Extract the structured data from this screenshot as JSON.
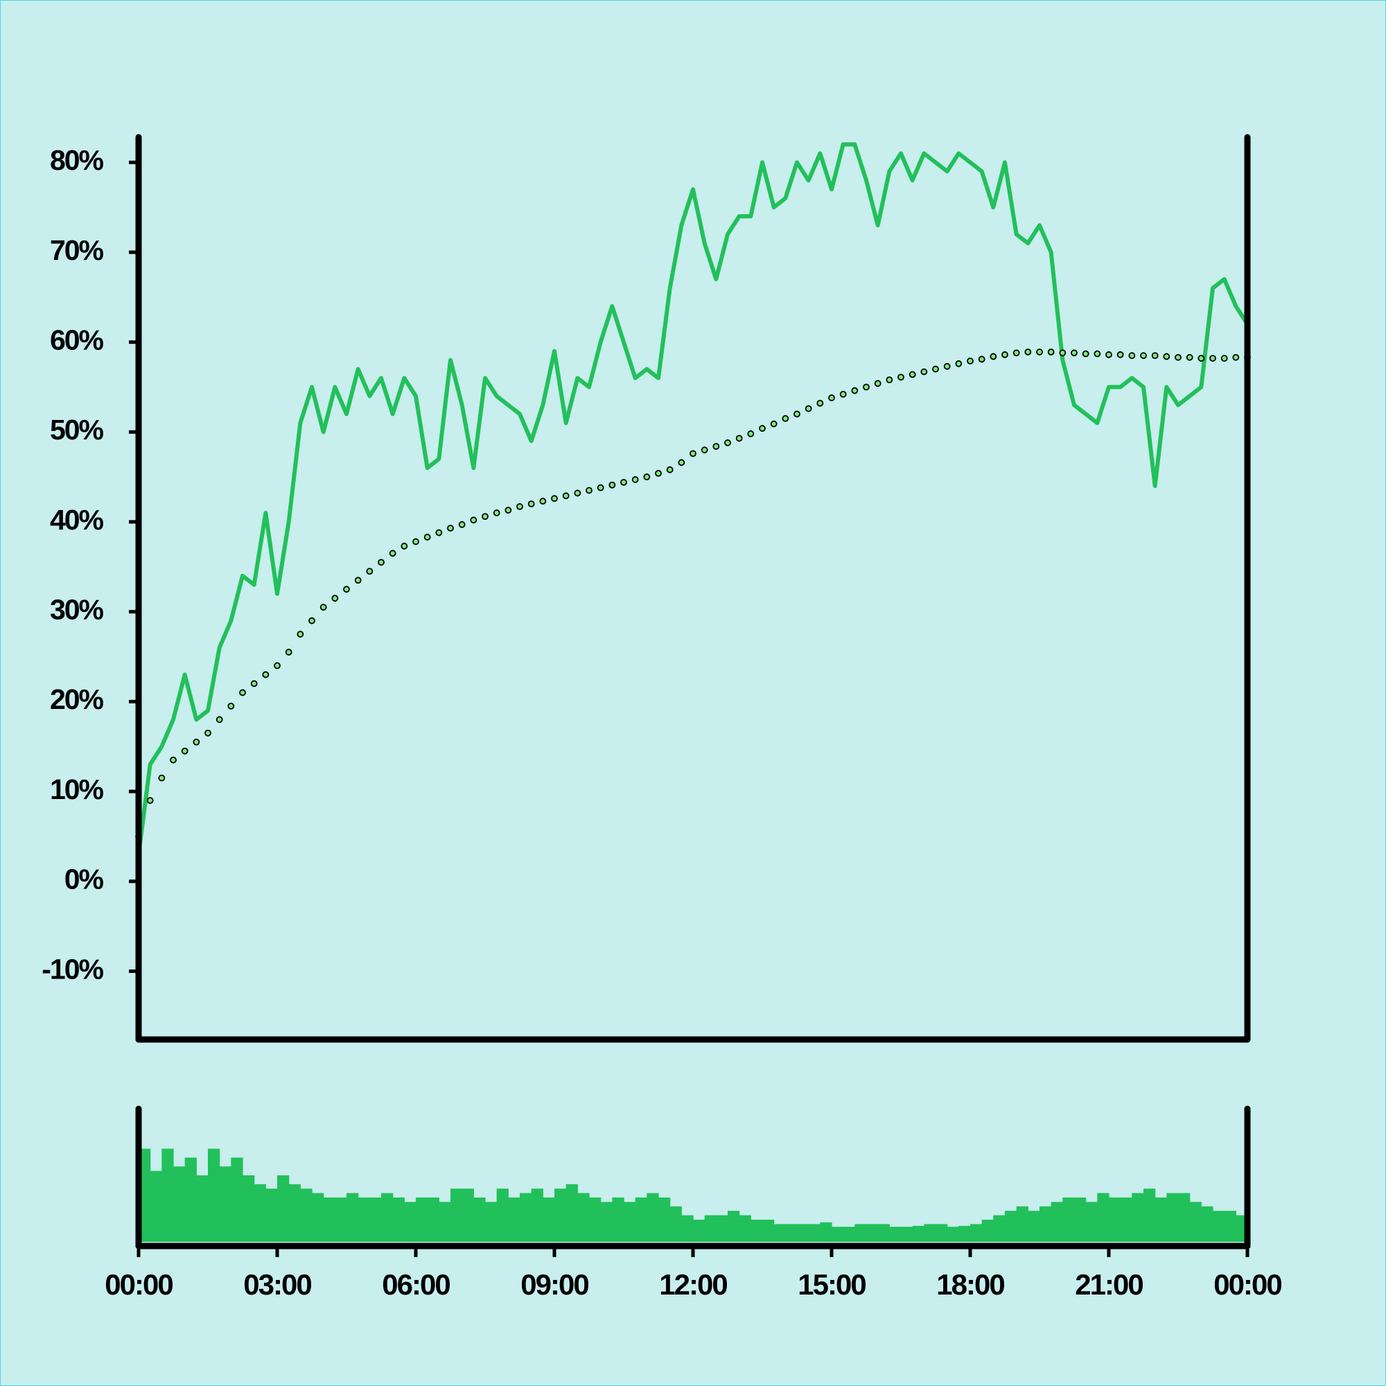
{
  "chart_data": [
    {
      "type": "line",
      "x": [
        0,
        0.25,
        0.5,
        0.75,
        1,
        1.25,
        1.5,
        1.75,
        2,
        2.25,
        2.5,
        2.75,
        3,
        3.25,
        3.5,
        3.75,
        4,
        4.25,
        4.5,
        4.75,
        5,
        5.25,
        5.5,
        5.75,
        6,
        6.25,
        6.5,
        6.75,
        7,
        7.25,
        7.5,
        7.75,
        8,
        8.25,
        8.5,
        8.75,
        9,
        9.25,
        9.5,
        9.75,
        10,
        10.25,
        10.5,
        10.75,
        11,
        11.25,
        11.5,
        11.75,
        12,
        12.25,
        12.5,
        12.75,
        13,
        13.25,
        13.5,
        13.75,
        14,
        14.25,
        14.5,
        14.75,
        15,
        15.25,
        15.5,
        15.75,
        16,
        16.25,
        16.5,
        16.75,
        17,
        17.25,
        17.5,
        17.75,
        18,
        18.25,
        18.5,
        18.75,
        19,
        19.25,
        19.5,
        19.75,
        20,
        20.25,
        20.5,
        20.75,
        21,
        21.25,
        21.5,
        21.75,
        22,
        22.25,
        22.5,
        22.75,
        23,
        23.25,
        23.5,
        23.75,
        24
      ],
      "xlim": [
        0,
        24
      ],
      "ylim": [
        -17.6,
        82.8
      ],
      "yticks": [
        {
          "value": -10,
          "label": "-10%"
        },
        {
          "value": 0,
          "label": "0%"
        },
        {
          "value": 10,
          "label": "10%"
        },
        {
          "value": 20,
          "label": "20%"
        },
        {
          "value": 30,
          "label": "30%"
        },
        {
          "value": 40,
          "label": "40%"
        },
        {
          "value": 50,
          "label": "50%"
        },
        {
          "value": 60,
          "label": "60%"
        },
        {
          "value": 70,
          "label": "70%"
        },
        {
          "value": 80,
          "label": "80%"
        }
      ],
      "series": [
        {
          "style": "line",
          "color": "#22c05a",
          "values": [
            3,
            13,
            15,
            18,
            23,
            18,
            19,
            26,
            29,
            34,
            33,
            41,
            32,
            40,
            51,
            55,
            50,
            55,
            52,
            57,
            54,
            56,
            52,
            56,
            54,
            46,
            47,
            58,
            53,
            46,
            56,
            54,
            53,
            52,
            49,
            53,
            59,
            51,
            56,
            55,
            60,
            64,
            60,
            56,
            57,
            56,
            66,
            73,
            77,
            71,
            67,
            72,
            74,
            74,
            80,
            75,
            76,
            80,
            78,
            81,
            77,
            82,
            82,
            78,
            73,
            79,
            81,
            78,
            81,
            80,
            79,
            81,
            80,
            79,
            75,
            80,
            72,
            71,
            73,
            70,
            58,
            53,
            52,
            51,
            55,
            55,
            56,
            55,
            44,
            55,
            53,
            54,
            55,
            66,
            67,
            64,
            62
          ]
        },
        {
          "style": "dots",
          "color": "#7de87d",
          "values": [
            5,
            9,
            11.5,
            13.5,
            14.5,
            15.5,
            16.5,
            18,
            19.5,
            21,
            22,
            23,
            24,
            25.5,
            27.5,
            29,
            30.5,
            31.5,
            32.5,
            33.5,
            34.5,
            35.5,
            36.5,
            37.3,
            37.8,
            38.3,
            38.8,
            39.3,
            39.7,
            40.2,
            40.6,
            41,
            41.3,
            41.7,
            42,
            42.3,
            42.6,
            42.9,
            43.2,
            43.5,
            43.8,
            44.1,
            44.4,
            44.7,
            45,
            45.4,
            45.8,
            46.6,
            47.6,
            48,
            48.4,
            48.8,
            49.3,
            49.8,
            50.4,
            50.9,
            51.5,
            52,
            52.6,
            53.2,
            53.8,
            54.2,
            54.6,
            55,
            55.4,
            55.8,
            56.1,
            56.4,
            56.7,
            57,
            57.3,
            57.6,
            57.9,
            58.1,
            58.4,
            58.6,
            58.8,
            58.9,
            58.9,
            58.9,
            58.8,
            58.8,
            58.7,
            58.7,
            58.6,
            58.6,
            58.5,
            58.5,
            58.5,
            58.4,
            58.3,
            58.3,
            58.2,
            58.2,
            58.2,
            58.3,
            58.3
          ]
        }
      ]
    },
    {
      "type": "bar",
      "color": "#22c05a",
      "bar_width": 0.25,
      "x": [
        0,
        0.25,
        0.5,
        0.75,
        1,
        1.25,
        1.5,
        1.75,
        2,
        2.25,
        2.5,
        2.75,
        3,
        3.25,
        3.5,
        3.75,
        4,
        4.25,
        4.5,
        4.75,
        5,
        5.25,
        5.5,
        5.75,
        6,
        6.25,
        6.5,
        6.75,
        7,
        7.25,
        7.5,
        7.75,
        8,
        8.25,
        8.5,
        8.75,
        9,
        9.25,
        9.5,
        9.75,
        10,
        10.25,
        10.5,
        10.75,
        11,
        11.25,
        11.5,
        11.75,
        12,
        12.25,
        12.5,
        12.75,
        13,
        13.25,
        13.5,
        13.75,
        14,
        14.25,
        14.5,
        14.75,
        15,
        15.25,
        15.5,
        15.75,
        16,
        16.25,
        16.5,
        16.75,
        17,
        17.25,
        17.5,
        17.75,
        18,
        18.25,
        18.5,
        18.75,
        19,
        19.25,
        19.5,
        19.75,
        20,
        20.25,
        20.5,
        20.75,
        21,
        21.25,
        21.5,
        21.75,
        22,
        22.25,
        22.5,
        22.75,
        23,
        23.25,
        23.5,
        23.75
      ],
      "values": [
        105,
        80,
        105,
        85,
        95,
        75,
        105,
        85,
        95,
        75,
        65,
        60,
        75,
        65,
        60,
        55,
        50,
        50,
        55,
        50,
        50,
        55,
        50,
        45,
        50,
        50,
        45,
        60,
        60,
        50,
        45,
        60,
        50,
        55,
        60,
        50,
        60,
        65,
        55,
        50,
        45,
        50,
        45,
        50,
        55,
        50,
        40,
        30,
        25,
        30,
        30,
        35,
        30,
        25,
        25,
        20,
        20,
        20,
        20,
        22,
        17,
        17,
        20,
        20,
        20,
        17,
        17,
        18,
        20,
        20,
        17,
        18,
        20,
        25,
        30,
        35,
        40,
        35,
        40,
        45,
        50,
        50,
        45,
        55,
        50,
        50,
        55,
        60,
        50,
        55,
        55,
        45,
        40,
        35,
        35,
        30
      ],
      "xlim": [
        0,
        24
      ],
      "ylim": [
        0,
        150
      ],
      "xticks": [
        {
          "value": 0,
          "label": "00:00"
        },
        {
          "value": 3,
          "label": "03:00"
        },
        {
          "value": 6,
          "label": "06:00"
        },
        {
          "value": 9,
          "label": "09:00"
        },
        {
          "value": 12,
          "label": "12:00"
        },
        {
          "value": 15,
          "label": "15:00"
        },
        {
          "value": 18,
          "label": "18:00"
        },
        {
          "value": 21,
          "label": "21:00"
        },
        {
          "value": 24,
          "label": "00:00"
        }
      ]
    }
  ]
}
